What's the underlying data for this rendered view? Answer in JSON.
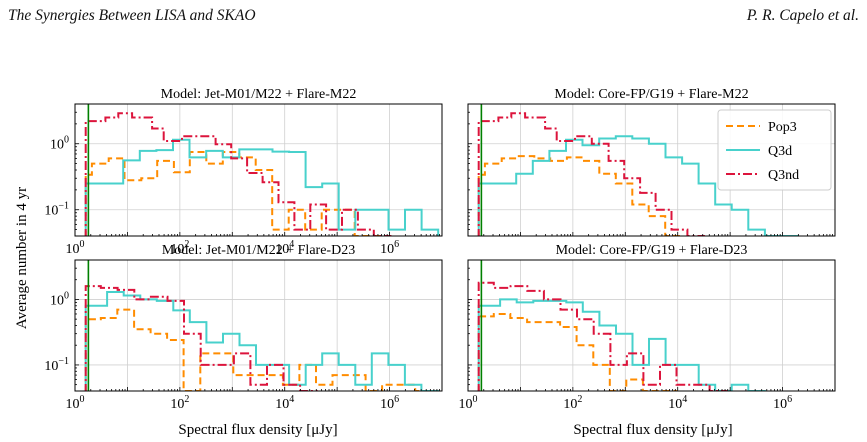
{
  "header": {
    "left": "The Synergies Between LISA and SKAO",
    "right": "P. R. Capelo et al."
  },
  "figure": {
    "ylabel": "Average number in 4 yr",
    "xlabel": "Spectral flux density [μJy]",
    "legend": [
      "Pop3",
      "Q3d",
      "Q3nd"
    ],
    "legend_placement": "upper-right of top-right panel"
  },
  "colors": {
    "Pop3": "#ff8c00",
    "Q3d": "#48d1cc",
    "Q3nd": "#dc143c",
    "vline": "#008000",
    "grid": "#d0d0d0"
  },
  "chart_data": [
    {
      "type": "step-histogram",
      "title": "Model: Jet-M01/M22 + Flare-M22",
      "xscale": "log",
      "yscale": "log",
      "xlim": [
        1,
        10000000.0
      ],
      "ylim": [
        0.04,
        4
      ],
      "xticks": [
        1,
        100,
        10000,
        1000000
      ],
      "xtick_labels": [
        "10^0",
        "10^2",
        "10^4",
        "10^6"
      ],
      "yticks": [
        0.1,
        1
      ],
      "ytick_labels": [
        "10^-1",
        "10^0"
      ],
      "grid": true,
      "vline_x": 1.8,
      "series": [
        {
          "name": "Pop3",
          "style": "dashed",
          "x": [
            1.6,
            2.1,
            4.4,
            8.8,
            18.4,
            37,
            77,
            155,
            319,
            658,
            1358,
            2800,
            5780,
            11900,
            24600,
            50700,
            104800,
            216100,
            446000
          ],
          "y": [
            0.34,
            0.5,
            0.6,
            0.28,
            0.3,
            0.55,
            0.37,
            0.75,
            0.5,
            0.75,
            0.62,
            0.4,
            0.05,
            0.1,
            0.05,
            0.1,
            0.1,
            0.04,
            0.04
          ]
        },
        {
          "name": "Q3d",
          "style": "solid",
          "x": [
            1.6,
            8.3,
            17.2,
            35.7,
            73.9,
            153,
            318,
            658,
            1360,
            2820,
            5840,
            12100,
            25000,
            51800,
            107300,
            222200,
            460100,
            952800,
            1973000,
            4085000
          ],
          "y": [
            0.25,
            0.56,
            0.78,
            0.8,
            1.15,
            0.62,
            0.78,
            0.62,
            0.82,
            0.82,
            0.76,
            0.75,
            0.22,
            0.25,
            0.05,
            0.1,
            0.1,
            0.05,
            0.1,
            0.05
          ]
        },
        {
          "name": "Q3nd",
          "style": "dashdot",
          "x": [
            1.6,
            3.8,
            6.7,
            12.3,
            29.5,
            49.1,
            110,
            230,
            480,
            955,
            1920,
            3790,
            7600,
            15280,
            30700,
            61700,
            124000,
            249000,
            500000
          ],
          "y": [
            2.2,
            2.5,
            2.9,
            2.5,
            1.7,
            1.1,
            1.3,
            1.3,
            0.98,
            0.6,
            0.36,
            0.26,
            0.13,
            0.05,
            0.12,
            0.05,
            0.1,
            0.05,
            0.04
          ]
        }
      ]
    },
    {
      "type": "step-histogram",
      "title": "Model: Core-FP/G19 + Flare-M22",
      "xscale": "log",
      "yscale": "log",
      "xlim": [
        1,
        10000000.0
      ],
      "ylim": [
        0.04,
        4
      ],
      "xticks": [
        1,
        100,
        10000,
        1000000
      ],
      "xtick_labels": [
        "",
        "",
        "",
        ""
      ],
      "yticks": [
        0.1,
        1
      ],
      "ytick_labels": [
        "",
        ""
      ],
      "grid": true,
      "vline_x": 1.8,
      "series": [
        {
          "name": "Pop3",
          "style": "dashed",
          "x": [
            1.6,
            2.1,
            4.4,
            8.8,
            18.4,
            37,
            77,
            155,
            319,
            658,
            1358,
            2800,
            5780
          ],
          "y": [
            0.34,
            0.5,
            0.6,
            0.65,
            0.6,
            0.55,
            0.62,
            0.55,
            0.35,
            0.25,
            0.12,
            0.08,
            0.04
          ]
        },
        {
          "name": "Q3d",
          "style": "solid",
          "x": [
            1.6,
            8.3,
            17.2,
            35.7,
            73.9,
            153,
            318,
            658,
            1360,
            2820,
            5840,
            12100,
            25000,
            51800,
            107300,
            222200,
            460100,
            952800
          ],
          "y": [
            0.25,
            0.35,
            0.55,
            0.78,
            1.15,
            0.95,
            1.2,
            1.3,
            1.2,
            1.0,
            0.62,
            0.5,
            0.25,
            0.12,
            0.1,
            0.05,
            0.04,
            0.04
          ]
        },
        {
          "name": "Q3nd",
          "style": "dashdot",
          "x": [
            1.6,
            3.8,
            6.7,
            12.3,
            29.5,
            49.1,
            110,
            230,
            480,
            955,
            1920,
            3790,
            7600,
            15280
          ],
          "y": [
            2.2,
            2.5,
            2.9,
            2.5,
            1.7,
            1.1,
            1.3,
            1.0,
            0.55,
            0.3,
            0.18,
            0.1,
            0.05,
            0.04
          ]
        }
      ]
    },
    {
      "type": "step-histogram",
      "title": "Model: Jet-M01/M22 + Flare-D23",
      "xscale": "log",
      "yscale": "log",
      "xlim": [
        1,
        10000000.0
      ],
      "ylim": [
        0.04,
        4
      ],
      "xticks": [
        1,
        100,
        10000,
        1000000
      ],
      "xtick_labels": [
        "10^0",
        "10^2",
        "10^4",
        "10^6"
      ],
      "yticks": [
        0.1,
        1
      ],
      "ytick_labels": [
        "10^-1",
        "10^0"
      ],
      "grid": true,
      "vline_x": 1.8,
      "series": [
        {
          "name": "Pop3",
          "style": "dashed",
          "x": [
            1.6,
            3.1,
            6.4,
            13.4,
            27.7,
            57.2,
            118,
            245,
            506,
            1046,
            2163,
            4470,
            9240,
            19100,
            39500,
            81600,
            168700,
            348700,
            720800,
            1490000,
            3080000
          ],
          "y": [
            0.5,
            0.52,
            0.7,
            0.35,
            0.3,
            0.24,
            0.04,
            0.15,
            0.15,
            0.07,
            0.07,
            0.07,
            0.05,
            0.1,
            0.05,
            0.07,
            0.07,
            0.04,
            0.05,
            0.05,
            0.04
          ]
        },
        {
          "name": "Q3d",
          "style": "solid",
          "x": [
            1.6,
            4.1,
            8.5,
            17.6,
            36.3,
            75.1,
            155,
            321,
            664,
            1373,
            2839,
            5870,
            12140,
            25100,
            51900,
            107300,
            221800,
            458700,
            948500,
            1961000,
            4054000
          ],
          "y": [
            0.8,
            1.3,
            1.15,
            1.0,
            0.95,
            0.68,
            0.45,
            0.22,
            0.3,
            0.2,
            0.1,
            0.1,
            0.05,
            0.1,
            0.15,
            0.1,
            0.05,
            0.15,
            0.1,
            0.05,
            0.04
          ]
        },
        {
          "name": "Q3nd",
          "style": "dashdot",
          "x": [
            1.6,
            3.1,
            6.5,
            13.5,
            28,
            58,
            120,
            250,
            520,
            1075,
            2220,
            4590,
            9500,
            19640
          ],
          "y": [
            1.6,
            1.5,
            1.4,
            1.0,
            1.1,
            0.95,
            0.3,
            0.1,
            0.1,
            0.15,
            0.05,
            0.1,
            0.05,
            0.04
          ]
        }
      ]
    },
    {
      "type": "step-histogram",
      "title": "Model: Core-FP/G19 + Flare-D23",
      "xscale": "log",
      "yscale": "log",
      "xlim": [
        1,
        10000000.0
      ],
      "ylim": [
        0.04,
        4
      ],
      "xticks": [
        1,
        100,
        10000,
        1000000
      ],
      "xtick_labels": [
        "10^0",
        "10^2",
        "10^4",
        "10^6"
      ],
      "yticks": [
        0.1,
        1
      ],
      "ytick_labels": [
        "",
        ""
      ],
      "grid": true,
      "vline_x": 1.8,
      "series": [
        {
          "name": "Pop3",
          "style": "dashed",
          "x": [
            1.6,
            3.1,
            6.4,
            13.4,
            27.7,
            57.2,
            118,
            245,
            506,
            1046,
            2163,
            4470
          ],
          "y": [
            0.55,
            0.6,
            0.52,
            0.45,
            0.45,
            0.38,
            0.2,
            0.1,
            0.04,
            0.06,
            0.04,
            0.04
          ]
        },
        {
          "name": "Q3d",
          "style": "solid",
          "x": [
            1.6,
            4.1,
            8.5,
            17.6,
            36.3,
            75.1,
            155,
            321,
            664,
            1373,
            2839,
            5870,
            12140,
            25100,
            51900,
            107300,
            221800
          ],
          "y": [
            0.8,
            1.0,
            0.9,
            0.95,
            0.95,
            0.9,
            0.65,
            0.4,
            0.3,
            0.1,
            0.25,
            0.1,
            0.1,
            0.05,
            0.04,
            0.05,
            0.04
          ]
        },
        {
          "name": "Q3nd",
          "style": "dashdot",
          "x": [
            1.6,
            3.1,
            6.5,
            13.5,
            28,
            58,
            120,
            250,
            520,
            1075,
            2220,
            4590,
            9500,
            19640,
            40600
          ],
          "y": [
            1.8,
            1.5,
            1.6,
            1.35,
            1.0,
            0.7,
            0.5,
            0.3,
            0.1,
            0.15,
            0.05,
            0.1,
            0.05,
            0.05,
            0.04
          ]
        }
      ]
    }
  ]
}
